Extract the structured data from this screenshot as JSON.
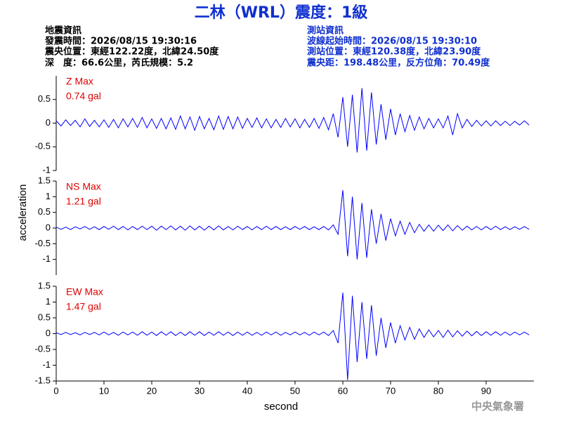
{
  "header": {
    "title": "二林（WRL）震度：1級",
    "left_heading": "地震資訊",
    "left_lines": [
      "發震時間：2026/08/15 19:30:16",
      "震央位置：東經122.22度，北緯24.50度",
      "深　度：66.6公里，芮氏規模：5.2"
    ],
    "right_heading": "測站資訊",
    "right_lines": [
      "波線起始時間：2026/08/15 19:30:10",
      "測站位置：東經120.38度，北緯23.90度",
      "震央距：198.48公里，反方位角：70.49度"
    ],
    "footer": "中央氣象署"
  },
  "chart_data": [
    {
      "type": "line",
      "ylabel": "acceleration",
      "max_label": "Z Max",
      "max_value": "0.74 gal",
      "color": "#0000ff",
      "xlim": [
        0,
        100
      ],
      "ylim": [
        -1,
        1
      ],
      "yticks": [
        -1,
        -0.5,
        0,
        0.5
      ],
      "x": [
        0,
        1,
        2,
        3,
        4,
        5,
        6,
        7,
        8,
        9,
        10,
        11,
        12,
        13,
        14,
        15,
        16,
        17,
        18,
        19,
        20,
        21,
        22,
        23,
        24,
        25,
        26,
        27,
        28,
        29,
        30,
        31,
        32,
        33,
        34,
        35,
        36,
        37,
        38,
        39,
        40,
        41,
        42,
        43,
        44,
        45,
        46,
        47,
        48,
        49,
        50,
        51,
        52,
        53,
        54,
        55,
        56,
        57,
        58,
        59,
        60,
        61,
        62,
        63,
        64,
        65,
        66,
        67,
        68,
        69,
        70,
        71,
        72,
        73,
        74,
        75,
        76,
        77,
        78,
        79,
        80,
        81,
        82,
        83,
        84,
        85,
        86,
        87,
        88,
        89,
        90,
        91,
        92,
        93,
        94,
        95,
        96,
        97,
        98,
        99
      ],
      "values": [
        0.05,
        -0.06,
        0.07,
        -0.05,
        0.06,
        -0.08,
        0.09,
        -0.07,
        0.06,
        -0.08,
        0.07,
        -0.09,
        0.08,
        -0.1,
        0.09,
        -0.08,
        0.1,
        -0.09,
        0.12,
        -0.1,
        0.09,
        -0.11,
        0.1,
        -0.12,
        0.11,
        -0.13,
        0.15,
        -0.12,
        0.13,
        -0.15,
        0.14,
        -0.12,
        0.1,
        -0.14,
        0.15,
        -0.13,
        0.14,
        -0.12,
        0.13,
        -0.11,
        0.1,
        -0.09,
        0.11,
        -0.1,
        0.09,
        -0.1,
        0.08,
        -0.09,
        0.1,
        -0.08,
        0.09,
        -0.1,
        0.08,
        -0.09,
        0.1,
        -0.11,
        0.12,
        -0.14,
        0.2,
        -0.3,
        0.55,
        -0.5,
        0.6,
        -0.62,
        0.74,
        -0.58,
        0.65,
        -0.45,
        0.4,
        -0.35,
        0.3,
        -0.25,
        0.2,
        -0.18,
        0.16,
        -0.15,
        0.13,
        -0.12,
        0.1,
        -0.1,
        0.09,
        -0.1,
        0.15,
        -0.25,
        0.2,
        -0.1,
        0.08,
        -0.07,
        0.06,
        -0.06,
        0.05,
        -0.06,
        0.05,
        -0.05,
        0.04,
        -0.05,
        0.04,
        -0.04,
        0.05,
        -0.04
      ]
    },
    {
      "type": "line",
      "max_label": "NS Max",
      "max_value": "1.21 gal",
      "color": "#0000ff",
      "xlim": [
        0,
        100
      ],
      "ylim": [
        -1.5,
        1.5
      ],
      "yticks": [
        -1,
        -0.5,
        0,
        0.5,
        1,
        1.5
      ],
      "x": [
        0,
        1,
        2,
        3,
        4,
        5,
        6,
        7,
        8,
        9,
        10,
        11,
        12,
        13,
        14,
        15,
        16,
        17,
        18,
        19,
        20,
        21,
        22,
        23,
        24,
        25,
        26,
        27,
        28,
        29,
        30,
        31,
        32,
        33,
        34,
        35,
        36,
        37,
        38,
        39,
        40,
        41,
        42,
        43,
        44,
        45,
        46,
        47,
        48,
        49,
        50,
        51,
        52,
        53,
        54,
        55,
        56,
        57,
        58,
        59,
        60,
        61,
        62,
        63,
        64,
        65,
        66,
        67,
        68,
        69,
        70,
        71,
        72,
        73,
        74,
        75,
        76,
        77,
        78,
        79,
        80,
        81,
        82,
        83,
        84,
        85,
        86,
        87,
        88,
        89,
        90,
        91,
        92,
        93,
        94,
        95,
        96,
        97,
        98,
        99
      ],
      "values": [
        0.03,
        -0.04,
        0.03,
        -0.05,
        0.04,
        -0.03,
        0.05,
        -0.04,
        0.04,
        -0.05,
        0.05,
        -0.04,
        0.06,
        -0.05,
        0.05,
        -0.06,
        0.05,
        -0.05,
        0.06,
        -0.05,
        0.06,
        -0.07,
        0.06,
        -0.05,
        0.07,
        -0.06,
        0.06,
        -0.07,
        0.07,
        -0.06,
        0.06,
        -0.07,
        0.06,
        -0.06,
        0.07,
        -0.06,
        0.05,
        -0.06,
        0.06,
        -0.05,
        0.05,
        -0.06,
        0.05,
        -0.05,
        0.06,
        -0.05,
        0.05,
        -0.05,
        0.04,
        -0.05,
        0.05,
        -0.04,
        0.05,
        -0.05,
        0.04,
        -0.05,
        0.05,
        -0.06,
        0.1,
        -0.2,
        1.21,
        -0.9,
        1.0,
        -1.0,
        0.8,
        -0.95,
        0.6,
        -0.5,
        0.45,
        -0.4,
        0.3,
        -0.25,
        0.22,
        -0.2,
        0.18,
        -0.15,
        0.12,
        -0.1,
        0.1,
        -0.1,
        0.09,
        -0.08,
        0.1,
        -0.09,
        0.08,
        -0.07,
        0.06,
        -0.06,
        0.05,
        -0.06,
        0.05,
        -0.05,
        0.06,
        -0.05,
        0.04,
        -0.05,
        0.04,
        -0.04,
        0.05,
        -0.04
      ]
    },
    {
      "type": "line",
      "xlabel": "second",
      "max_label": "EW Max",
      "max_value": "1.47 gal",
      "color": "#0000ff",
      "xlim": [
        0,
        100
      ],
      "ylim": [
        -1.5,
        1.5
      ],
      "yticks": [
        -1.5,
        -1,
        -0.5,
        0,
        0.5,
        1,
        1.5
      ],
      "xticks": [
        0,
        10,
        20,
        30,
        40,
        50,
        60,
        70,
        80,
        90
      ],
      "x": [
        0,
        1,
        2,
        3,
        4,
        5,
        6,
        7,
        8,
        9,
        10,
        11,
        12,
        13,
        14,
        15,
        16,
        17,
        18,
        19,
        20,
        21,
        22,
        23,
        24,
        25,
        26,
        27,
        28,
        29,
        30,
        31,
        32,
        33,
        34,
        35,
        36,
        37,
        38,
        39,
        40,
        41,
        42,
        43,
        44,
        45,
        46,
        47,
        48,
        49,
        50,
        51,
        52,
        53,
        54,
        55,
        56,
        57,
        58,
        59,
        60,
        61,
        62,
        63,
        64,
        65,
        66,
        67,
        68,
        69,
        70,
        71,
        72,
        73,
        74,
        75,
        76,
        77,
        78,
        79,
        80,
        81,
        82,
        83,
        84,
        85,
        86,
        87,
        88,
        89,
        90,
        91,
        92,
        93,
        94,
        95,
        96,
        97,
        98,
        99
      ],
      "values": [
        0.03,
        -0.03,
        0.04,
        -0.03,
        0.03,
        -0.04,
        0.04,
        -0.03,
        0.04,
        -0.04,
        0.05,
        -0.04,
        0.04,
        -0.05,
        0.05,
        -0.04,
        0.05,
        -0.05,
        0.06,
        -0.05,
        0.05,
        -0.06,
        0.06,
        -0.05,
        0.06,
        -0.06,
        0.05,
        -0.06,
        0.06,
        -0.05,
        0.06,
        -0.06,
        0.05,
        -0.05,
        0.06,
        -0.05,
        0.05,
        -0.06,
        0.05,
        -0.05,
        0.05,
        -0.05,
        0.04,
        -0.05,
        0.05,
        -0.04,
        0.05,
        -0.05,
        0.04,
        -0.04,
        0.05,
        -0.04,
        0.04,
        -0.05,
        0.05,
        -0.04,
        0.05,
        -0.06,
        0.1,
        -0.3,
        1.3,
        -1.47,
        1.2,
        -0.9,
        1.0,
        -0.8,
        0.9,
        -0.7,
        0.5,
        -0.45,
        0.35,
        -0.3,
        0.25,
        -0.2,
        0.2,
        -0.18,
        0.15,
        -0.12,
        0.12,
        -0.1,
        0.1,
        -0.12,
        0.11,
        -0.1,
        0.09,
        -0.08,
        0.08,
        -0.07,
        0.07,
        -0.06,
        0.06,
        -0.05,
        0.06,
        -0.05,
        0.05,
        -0.05,
        0.05,
        -0.04,
        0.05,
        -0.04
      ]
    }
  ]
}
